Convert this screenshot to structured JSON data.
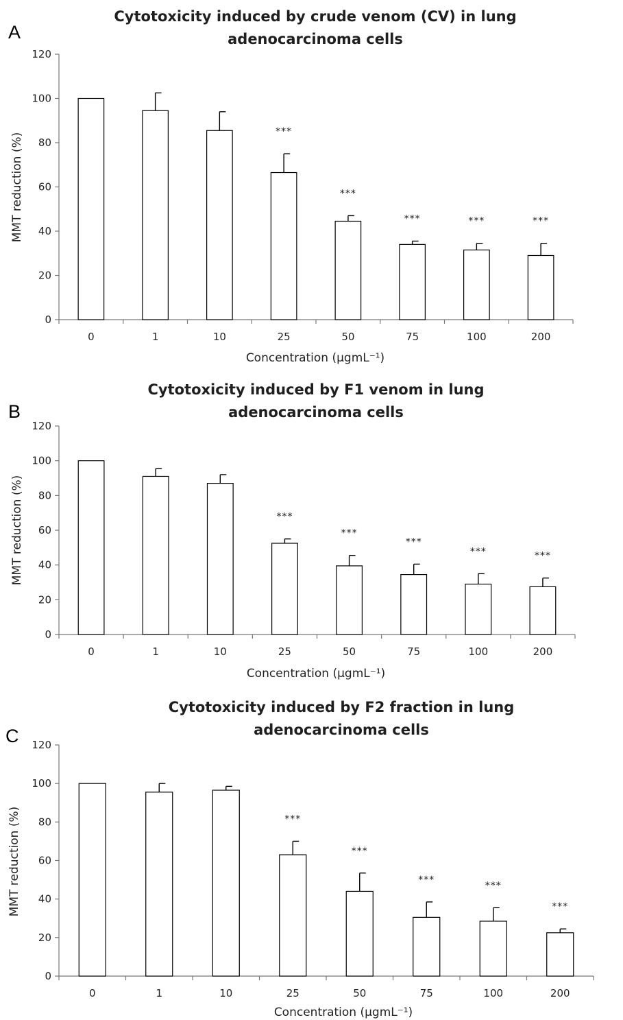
{
  "chart_data": [
    {
      "type": "bar",
      "panel": "A",
      "title_lines": [
        "Cytotoxicity induced by crude venom (CV) in lung",
        "adenocarcinoma cells"
      ],
      "xlabel": "Concentration (μgmL⁻¹)",
      "ylabel": "MMT reduction (%)",
      "ylim": [
        0,
        120
      ],
      "yticks": [
        "0",
        "20",
        "40",
        "60",
        "80",
        "100",
        "120"
      ],
      "categories": [
        "0",
        "1",
        "10",
        "25",
        "50",
        "75",
        "100",
        "200"
      ],
      "values": [
        100,
        94.5,
        85.5,
        66.5,
        44.5,
        34,
        31.5,
        29
      ],
      "errors": [
        0,
        8,
        8.5,
        8.5,
        2.5,
        1.5,
        3,
        5.5
      ],
      "significance": [
        "",
        "",
        "",
        "***",
        "***",
        "***",
        "***",
        "***"
      ]
    },
    {
      "type": "bar",
      "panel": "B",
      "title_lines": [
        "Cytotoxicity induced by F1 venom in lung",
        "adenocarcinoma cells"
      ],
      "xlabel": "Concentration (μgmL⁻¹)",
      "ylabel": "MMT reduction (%)",
      "ylim": [
        0,
        120
      ],
      "yticks": [
        "0",
        "20",
        "40",
        "60",
        "80",
        "100",
        "120"
      ],
      "categories": [
        "0",
        "1",
        "10",
        "25",
        "50",
        "75",
        "100",
        "200"
      ],
      "values": [
        100,
        91,
        87,
        52.5,
        39.5,
        34.5,
        29,
        27.5
      ],
      "errors": [
        0,
        4.5,
        5,
        2.5,
        6,
        6,
        6,
        5
      ],
      "significance": [
        "",
        "",
        "",
        "***",
        "***",
        "***",
        "***",
        "***"
      ]
    },
    {
      "type": "bar",
      "panel": "C",
      "title_lines": [
        "Cytotoxicity induced by F2 fraction in lung",
        "adenocarcinoma cells"
      ],
      "xlabel": "Concentration (μgmL⁻¹)",
      "ylabel": "MMT reduction (%)",
      "ylim": [
        0,
        120
      ],
      "yticks": [
        "0",
        "20",
        "40",
        "60",
        "80",
        "100",
        "120"
      ],
      "categories": [
        "0",
        "1",
        "10",
        "25",
        "50",
        "75",
        "100",
        "200"
      ],
      "values": [
        100,
        95.5,
        96.5,
        63,
        44,
        30.5,
        28.5,
        22.5
      ],
      "errors": [
        0,
        4.5,
        2,
        7,
        9.5,
        8,
        7,
        2
      ],
      "significance": [
        "",
        "",
        "",
        "***",
        "***",
        "***",
        "***",
        "***"
      ]
    }
  ]
}
